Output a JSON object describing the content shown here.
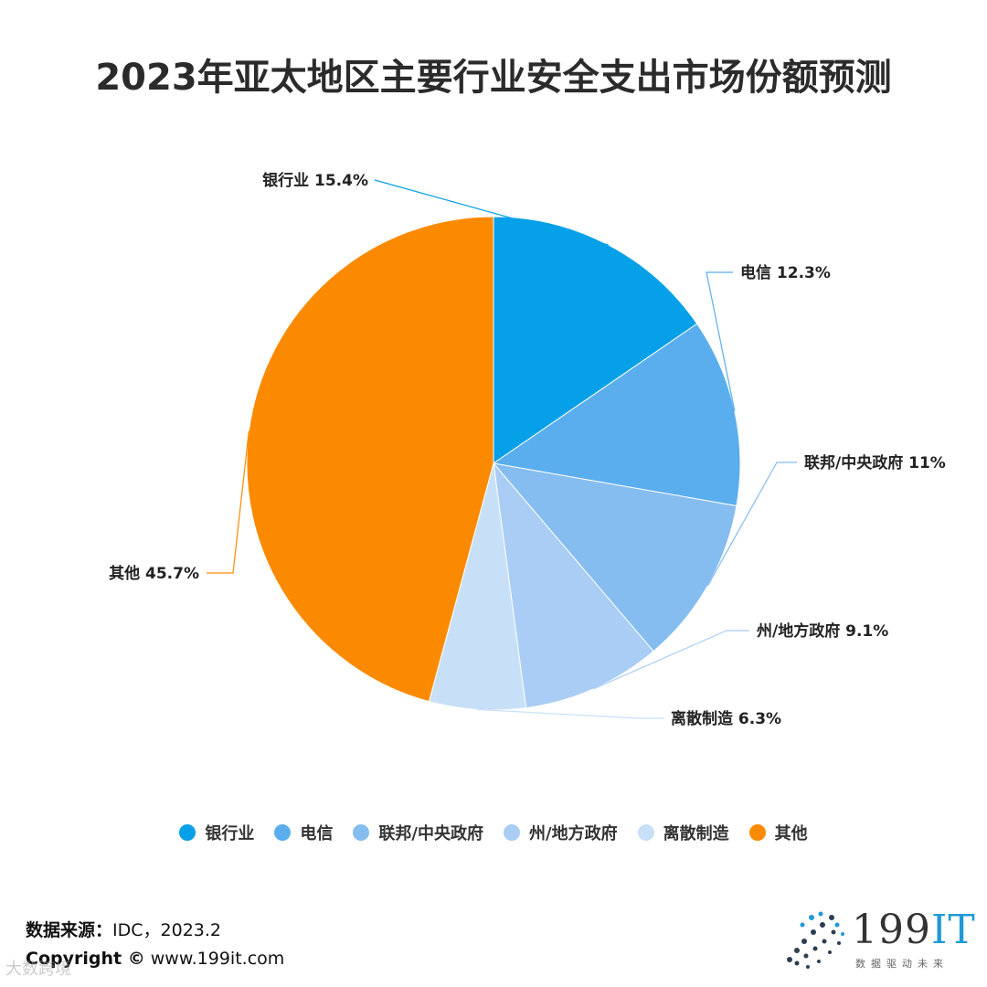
{
  "chart_data": {
    "type": "pie",
    "title": "2023年亚太地区主要行业安全支出市场份额预测",
    "slices": [
      {
        "name": "银行业",
        "value": 15.4,
        "label": "银行业 15.4%",
        "color": "#05a0e8"
      },
      {
        "name": "电信",
        "value": 12.3,
        "label": "电信 12.3%",
        "color": "#5aaeed"
      },
      {
        "name": "联邦/中央政府",
        "value": 11,
        "label": "联邦/中央政府 11%",
        "color": "#86bdf0"
      },
      {
        "name": "州/地方政府",
        "value": 9.1,
        "label": "州/地方政府 9.1%",
        "color": "#a9cdf4"
      },
      {
        "name": "离散制造",
        "value": 6.3,
        "label": "离散制造 6.3%",
        "color": "#c7e0f8"
      },
      {
        "name": "其他",
        "value": 45.7,
        "label": "其他 45.7%",
        "color": "#fb8a00"
      }
    ],
    "legend_position": "bottom"
  },
  "footer": {
    "source_label": "数据来源：",
    "source_value": "IDC，2023.2",
    "copyright_label": "Copyright ©",
    "copyright_value": " www.199it.com"
  },
  "logo": {
    "text_main": "199",
    "text_accent": "IT",
    "subtitle": "数据驱动未来"
  },
  "watermark": "大数跨境"
}
